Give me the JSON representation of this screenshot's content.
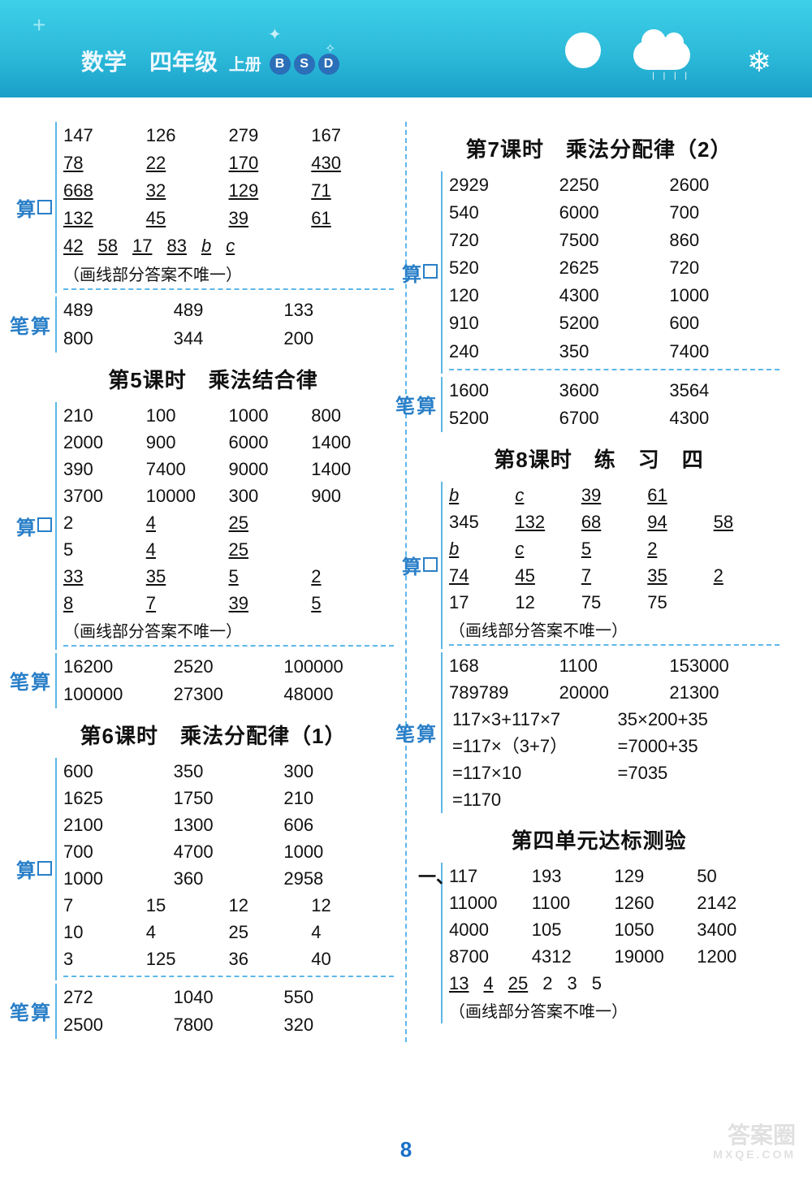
{
  "header": {
    "title_main": "数学　四年级",
    "title_sub": "上册",
    "badges": [
      "B",
      "S",
      "D"
    ],
    "bg_gradient": [
      "#3dd0e8",
      "#1a9fc8"
    ],
    "text_color": "#eef8ff"
  },
  "page_number": "8",
  "labels": {
    "kousuan": "算",
    "bisuan": "笔算",
    "one": "一、"
  },
  "note_text": "（画线部分答案不唯一）",
  "left": {
    "blockA_kou": {
      "rows": [
        [
          {
            "t": "147"
          },
          {
            "t": "126"
          },
          {
            "t": "279"
          },
          {
            "t": "167"
          }
        ],
        [
          {
            "t": "78",
            "u": 1
          },
          {
            "t": "22",
            "u": 1
          },
          {
            "t": "170",
            "u": 1
          },
          {
            "t": "430",
            "u": 1
          }
        ],
        [
          {
            "t": "668",
            "u": 1
          },
          {
            "t": "32",
            "u": 1
          },
          {
            "t": "129",
            "u": 1
          },
          {
            "t": "71",
            "u": 1
          }
        ],
        [
          {
            "t": "132",
            "u": 1
          },
          {
            "t": "45",
            "u": 1
          },
          {
            "t": "39",
            "u": 1
          },
          {
            "t": "61",
            "u": 1
          }
        ]
      ],
      "tail": [
        {
          "t": "42",
          "u": 1
        },
        {
          "t": "58",
          "u": 1
        },
        {
          "t": "17",
          "u": 1
        },
        {
          "t": "83",
          "u": 1
        },
        {
          "t": "b",
          "u": 1,
          "it": 1
        },
        {
          "t": "c",
          "u": 1,
          "it": 1
        }
      ],
      "note": true
    },
    "blockA_bi": [
      [
        "489",
        "489",
        "133"
      ],
      [
        "800",
        "344",
        "200"
      ]
    ],
    "section5_title": "第5课时　乘法结合律",
    "block5_kou": {
      "rows4": [
        [
          "210",
          "100",
          "1000",
          "800"
        ],
        [
          "2000",
          "900",
          "6000",
          "1400"
        ],
        [
          "390",
          "7400",
          "9000",
          "1400"
        ],
        [
          "3700",
          "10000",
          "300",
          "900"
        ]
      ],
      "rows_u": [
        [
          {
            "t": "2"
          },
          {
            "t": "4",
            "u": 1
          },
          {
            "t": "25",
            "u": 1
          },
          {
            "t": ""
          }
        ],
        [
          {
            "t": "5"
          },
          {
            "t": "4",
            "u": 1
          },
          {
            "t": "25",
            "u": 1
          },
          {
            "t": ""
          }
        ],
        [
          {
            "t": "33",
            "u": 1
          },
          {
            "t": "35",
            "u": 1
          },
          {
            "t": "5",
            "u": 1
          },
          {
            "t": "2",
            "u": 1
          }
        ],
        [
          {
            "t": "8",
            "u": 1
          },
          {
            "t": "7",
            "u": 1
          },
          {
            "t": "39",
            "u": 1
          },
          {
            "t": "5",
            "u": 1
          }
        ]
      ],
      "note": true
    },
    "block5_bi": [
      [
        "16200",
        "2520",
        "100000"
      ],
      [
        "100000",
        "27300",
        "48000"
      ]
    ],
    "section6_title": "第6课时　乘法分配律（1）",
    "block6_kou": {
      "rows3": [
        [
          "600",
          "350",
          "300"
        ],
        [
          "1625",
          "1750",
          "210"
        ],
        [
          "2100",
          "1300",
          "606"
        ],
        [
          "700",
          "4700",
          "1000"
        ],
        [
          "1000",
          "360",
          "2958"
        ]
      ],
      "rows4": [
        [
          "7",
          "15",
          "12",
          "12"
        ],
        [
          "10",
          "4",
          "25",
          "4"
        ],
        [
          "3",
          "125",
          "36",
          "40"
        ]
      ]
    },
    "block6_bi": [
      [
        "272",
        "1040",
        "550"
      ],
      [
        "2500",
        "7800",
        "320"
      ]
    ]
  },
  "right": {
    "section7_title": "第7课时　乘法分配律（2）",
    "block7_kou": [
      [
        "2929",
        "2250",
        "2600"
      ],
      [
        "540",
        "6000",
        "700"
      ],
      [
        "720",
        "7500",
        "860"
      ],
      [
        "520",
        "2625",
        "720"
      ],
      [
        "120",
        "4300",
        "1000"
      ],
      [
        "910",
        "5200",
        "600"
      ],
      [
        "240",
        "350",
        "7400"
      ]
    ],
    "block7_bi": [
      [
        "1600",
        "3600",
        "3564"
      ],
      [
        "5200",
        "6700",
        "4300"
      ]
    ],
    "section8_title": "第8课时　练　习　四",
    "block8_kou": {
      "rows": [
        [
          {
            "t": "b",
            "u": 1,
            "it": 1
          },
          {
            "t": "c",
            "u": 1,
            "it": 1
          },
          {
            "t": "39",
            "u": 1
          },
          {
            "t": "61",
            "u": 1
          },
          {
            "t": ""
          }
        ],
        [
          {
            "t": "345"
          },
          {
            "t": "132",
            "u": 1
          },
          {
            "t": "68",
            "u": 1
          },
          {
            "t": "94",
            "u": 1
          },
          {
            "t": "58",
            "u": 1
          }
        ],
        [
          {
            "t": "b",
            "u": 1,
            "it": 1
          },
          {
            "t": "c",
            "u": 1,
            "it": 1
          },
          {
            "t": "5",
            "u": 1
          },
          {
            "t": "2",
            "u": 1
          },
          {
            "t": ""
          }
        ],
        [
          {
            "t": "74",
            "u": 1
          },
          {
            "t": "45",
            "u": 1
          },
          {
            "t": "7",
            "u": 1
          },
          {
            "t": "35",
            "u": 1
          },
          {
            "t": "2",
            "u": 1
          }
        ],
        [
          {
            "t": "17"
          },
          {
            "t": "12"
          },
          {
            "t": "75"
          },
          {
            "t": "75"
          },
          {
            "t": ""
          }
        ]
      ],
      "note": true
    },
    "block8_bi": {
      "rows3": [
        [
          "168",
          "1100",
          "153000"
        ],
        [
          "789789",
          "20000",
          "21300"
        ]
      ],
      "eq_left": [
        "117×3+117×7",
        "=117×（3+7）",
        "=117×10",
        "=1170"
      ],
      "eq_right": [
        "35×200+35",
        "=7000+35",
        "=7035",
        ""
      ]
    },
    "section_unit4_title": "第四单元达标测验",
    "unit4_one": {
      "rows4": [
        [
          "117",
          "193",
          "129",
          "50"
        ],
        [
          "11000",
          "1100",
          "1260",
          "2142"
        ],
        [
          "4000",
          "105",
          "1050",
          "3400"
        ],
        [
          "8700",
          "4312",
          "19000",
          "1200"
        ]
      ],
      "tail": [
        {
          "t": "13",
          "u": 1
        },
        {
          "t": "4",
          "u": 1
        },
        {
          "t": "25",
          "u": 1
        },
        {
          "t": "2"
        },
        {
          "t": "3"
        },
        {
          "t": "5"
        }
      ],
      "note": true
    }
  },
  "colors": {
    "label_blue": "#2a7fc8",
    "divider_blue": "#5db8e8",
    "text": "#111111",
    "bg": "#ffffff"
  },
  "watermark": {
    "line1": "答案圈",
    "line2": "MXQE.COM"
  }
}
